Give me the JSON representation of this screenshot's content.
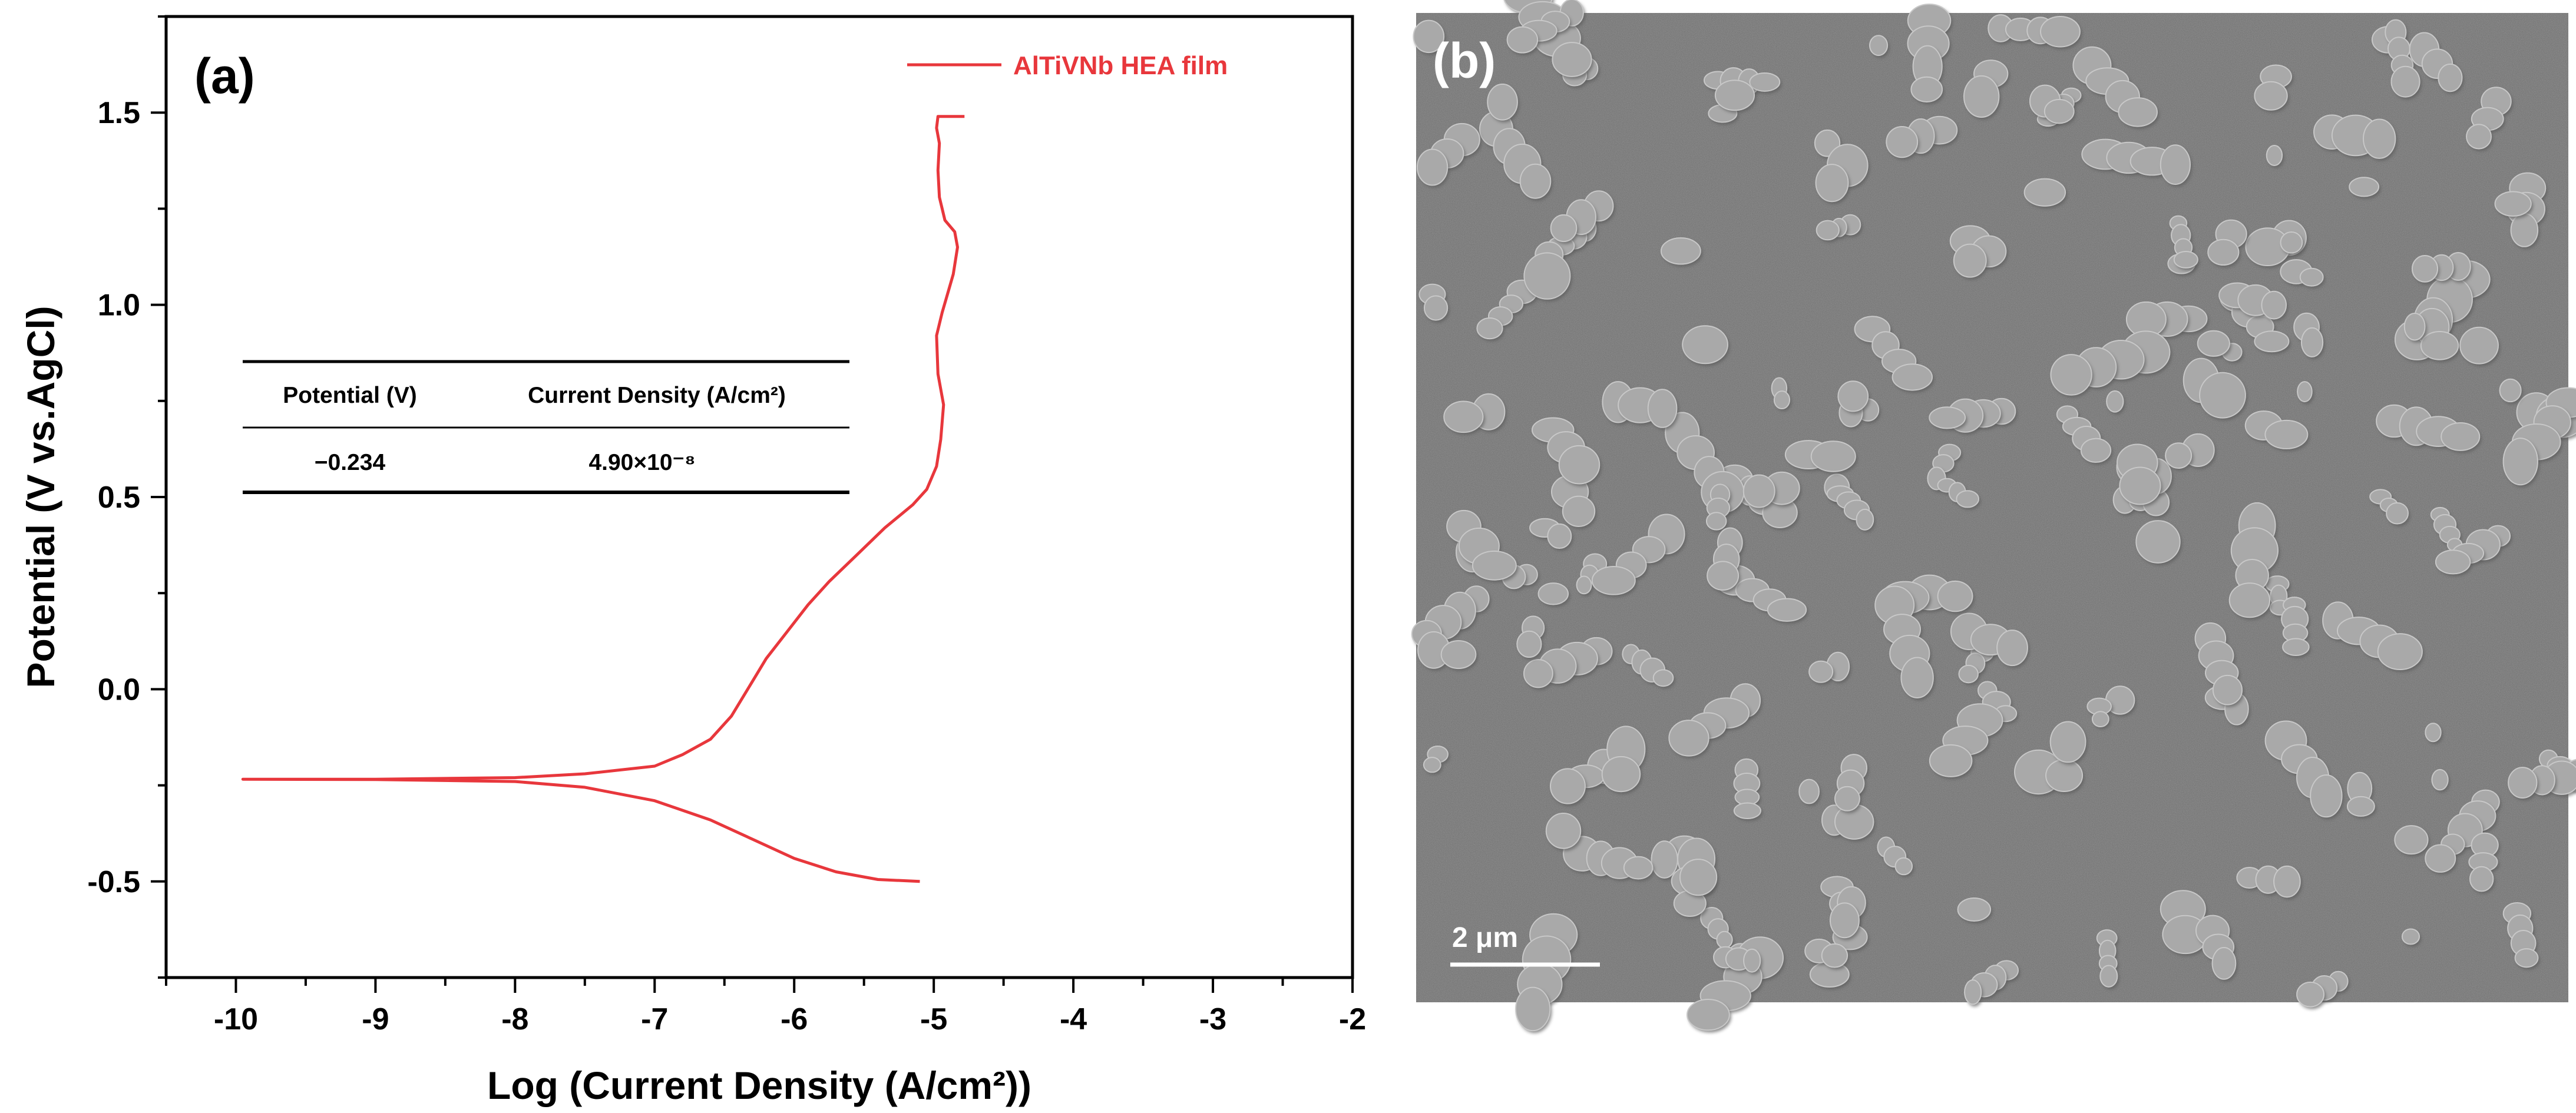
{
  "panels": {
    "a_label": "(a)",
    "b_label": "(b)"
  },
  "chart_data": {
    "type": "line",
    "xlabel": "Log (Current Density (A/cm²))",
    "ylabel": "Potential (V vs.AgCl)",
    "xlim": [
      -10.5,
      -2
    ],
    "ylim": [
      -0.75,
      1.75
    ],
    "xticks": [
      -10,
      -9,
      -8,
      -7,
      -6,
      -5,
      -4,
      -3,
      -2
    ],
    "yticks": [
      -0.5,
      0.0,
      0.5,
      1.0,
      1.5
    ],
    "xtick_labels": [
      "-10",
      "-9",
      "-8",
      "-7",
      "-6",
      "-5",
      "-4",
      "-3",
      "-2"
    ],
    "ytick_labels": [
      "-0.5",
      "0.0",
      "0.5",
      "1.0",
      "1.5"
    ],
    "grid": false,
    "legend_position": "top-right",
    "series": [
      {
        "name": "AlTiVNb HEA film",
        "color": "#e8373c",
        "points": [
          [
            -5.1,
            -0.5
          ],
          [
            -5.4,
            -0.495
          ],
          [
            -5.7,
            -0.475
          ],
          [
            -6.0,
            -0.44
          ],
          [
            -6.3,
            -0.39
          ],
          [
            -6.6,
            -0.34
          ],
          [
            -7.0,
            -0.29
          ],
          [
            -7.5,
            -0.255
          ],
          [
            -8.0,
            -0.24
          ],
          [
            -9.0,
            -0.235
          ],
          [
            -9.95,
            -0.234
          ],
          [
            -9.0,
            -0.234
          ],
          [
            -8.0,
            -0.23
          ],
          [
            -7.5,
            -0.22
          ],
          [
            -7.0,
            -0.2
          ],
          [
            -6.8,
            -0.17
          ],
          [
            -6.6,
            -0.13
          ],
          [
            -6.45,
            -0.07
          ],
          [
            -6.3,
            0.02
          ],
          [
            -6.2,
            0.08
          ],
          [
            -6.05,
            0.15
          ],
          [
            -5.9,
            0.22
          ],
          [
            -5.75,
            0.28
          ],
          [
            -5.55,
            0.35
          ],
          [
            -5.35,
            0.42
          ],
          [
            -5.15,
            0.48
          ],
          [
            -5.05,
            0.52
          ],
          [
            -4.98,
            0.58
          ],
          [
            -4.95,
            0.65
          ],
          [
            -4.93,
            0.74
          ],
          [
            -4.97,
            0.82
          ],
          [
            -4.98,
            0.92
          ],
          [
            -4.94,
            0.98
          ],
          [
            -4.9,
            1.03
          ],
          [
            -4.86,
            1.08
          ],
          [
            -4.83,
            1.15
          ],
          [
            -4.85,
            1.19
          ],
          [
            -4.92,
            1.22
          ],
          [
            -4.96,
            1.28
          ],
          [
            -4.97,
            1.35
          ],
          [
            -4.96,
            1.42
          ],
          [
            -4.98,
            1.46
          ],
          [
            -4.97,
            1.49
          ],
          [
            -4.88,
            1.49
          ],
          [
            -4.78,
            1.49
          ]
        ]
      }
    ],
    "table": {
      "headers": [
        "Potential (V)",
        "Current Density (A/cm²)"
      ],
      "row": [
        "−0.234",
        "4.90×10⁻⁸"
      ]
    }
  },
  "sem": {
    "scale_bar_label": "2 μm",
    "background_color": "#6e6e6e"
  }
}
